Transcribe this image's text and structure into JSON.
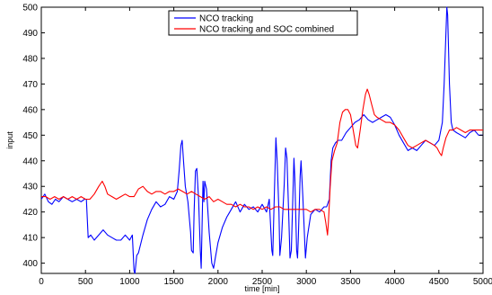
{
  "chart_data": {
    "type": "line",
    "xlabel": "time [min]",
    "ylabel": "input",
    "xlim": [
      0,
      5000
    ],
    "ylim": [
      396,
      500
    ],
    "xticks": [
      0,
      500,
      1000,
      1500,
      2000,
      2500,
      3000,
      3500,
      4000,
      4500,
      5000
    ],
    "yticks": [
      400,
      410,
      420,
      430,
      440,
      450,
      460,
      470,
      480,
      490,
      500
    ],
    "grid": false,
    "legend_position": "top-center",
    "series": [
      {
        "name": "NCO tracking",
        "color": "#0000ff",
        "points": [
          [
            0,
            425
          ],
          [
            40,
            427
          ],
          [
            80,
            424
          ],
          [
            120,
            423
          ],
          [
            160,
            425
          ],
          [
            200,
            424
          ],
          [
            250,
            426
          ],
          [
            300,
            425
          ],
          [
            350,
            424
          ],
          [
            400,
            425
          ],
          [
            450,
            424
          ],
          [
            490,
            425
          ],
          [
            510,
            425
          ],
          [
            530,
            410
          ],
          [
            560,
            411
          ],
          [
            600,
            409
          ],
          [
            650,
            411
          ],
          [
            700,
            413
          ],
          [
            750,
            411
          ],
          [
            800,
            410
          ],
          [
            850,
            409
          ],
          [
            900,
            409
          ],
          [
            950,
            411
          ],
          [
            1000,
            409
          ],
          [
            1030,
            411
          ],
          [
            1050,
            397
          ],
          [
            1060,
            396
          ],
          [
            1080,
            403
          ],
          [
            1100,
            404
          ],
          [
            1150,
            411
          ],
          [
            1200,
            417
          ],
          [
            1250,
            421
          ],
          [
            1300,
            424
          ],
          [
            1350,
            422
          ],
          [
            1400,
            423
          ],
          [
            1450,
            426
          ],
          [
            1500,
            425
          ],
          [
            1540,
            428
          ],
          [
            1560,
            436
          ],
          [
            1580,
            446
          ],
          [
            1595,
            448
          ],
          [
            1610,
            440
          ],
          [
            1630,
            430
          ],
          [
            1660,
            424
          ],
          [
            1690,
            412
          ],
          [
            1700,
            405
          ],
          [
            1720,
            404
          ],
          [
            1730,
            420
          ],
          [
            1745,
            436
          ],
          [
            1760,
            437
          ],
          [
            1780,
            425
          ],
          [
            1800,
            405
          ],
          [
            1810,
            398
          ],
          [
            1830,
            432
          ],
          [
            1840,
            424
          ],
          [
            1850,
            432
          ],
          [
            1870,
            429
          ],
          [
            1900,
            412
          ],
          [
            1930,
            400
          ],
          [
            1950,
            398
          ],
          [
            1970,
            402
          ],
          [
            2000,
            408
          ],
          [
            2050,
            414
          ],
          [
            2100,
            418
          ],
          [
            2150,
            421
          ],
          [
            2200,
            424
          ],
          [
            2250,
            420
          ],
          [
            2300,
            423
          ],
          [
            2350,
            421
          ],
          [
            2400,
            422
          ],
          [
            2450,
            420
          ],
          [
            2500,
            423
          ],
          [
            2550,
            420
          ],
          [
            2580,
            425
          ],
          [
            2610,
            405
          ],
          [
            2620,
            403
          ],
          [
            2640,
            430
          ],
          [
            2655,
            449
          ],
          [
            2670,
            440
          ],
          [
            2690,
            420
          ],
          [
            2700,
            403
          ],
          [
            2720,
            410
          ],
          [
            2750,
            431
          ],
          [
            2765,
            445
          ],
          [
            2780,
            441
          ],
          [
            2800,
            420
          ],
          [
            2815,
            402
          ],
          [
            2830,
            405
          ],
          [
            2860,
            441
          ],
          [
            2870,
            433
          ],
          [
            2890,
            405
          ],
          [
            2900,
            402
          ],
          [
            2910,
            410
          ],
          [
            2930,
            434
          ],
          [
            2940,
            440
          ],
          [
            2960,
            426
          ],
          [
            2990,
            402
          ],
          [
            3010,
            410
          ],
          [
            3050,
            419
          ],
          [
            3100,
            421
          ],
          [
            3150,
            420
          ],
          [
            3200,
            422
          ],
          [
            3230,
            422
          ],
          [
            3260,
            425
          ],
          [
            3280,
            440
          ],
          [
            3300,
            445
          ],
          [
            3330,
            447
          ],
          [
            3360,
            448
          ],
          [
            3400,
            448
          ],
          [
            3450,
            451
          ],
          [
            3500,
            453
          ],
          [
            3550,
            455
          ],
          [
            3600,
            456
          ],
          [
            3650,
            458
          ],
          [
            3700,
            456
          ],
          [
            3750,
            455
          ],
          [
            3800,
            456
          ],
          [
            3850,
            457
          ],
          [
            3900,
            458
          ],
          [
            3950,
            457
          ],
          [
            4000,
            454
          ],
          [
            4050,
            450
          ],
          [
            4100,
            447
          ],
          [
            4150,
            444
          ],
          [
            4200,
            445
          ],
          [
            4250,
            444
          ],
          [
            4300,
            446
          ],
          [
            4350,
            448
          ],
          [
            4400,
            447
          ],
          [
            4450,
            446
          ],
          [
            4500,
            448
          ],
          [
            4540,
            455
          ],
          [
            4560,
            470
          ],
          [
            4580,
            490
          ],
          [
            4590,
            500
          ],
          [
            4600,
            497
          ],
          [
            4620,
            470
          ],
          [
            4640,
            455
          ],
          [
            4660,
            452
          ],
          [
            4700,
            451
          ],
          [
            4750,
            450
          ],
          [
            4800,
            449
          ],
          [
            4850,
            451
          ],
          [
            4900,
            452
          ],
          [
            4950,
            450
          ],
          [
            5000,
            450
          ]
        ]
      },
      {
        "name": "NCO tracking and SOC combined",
        "color": "#ff0000",
        "points": [
          [
            0,
            426
          ],
          [
            50,
            426
          ],
          [
            100,
            425
          ],
          [
            150,
            426
          ],
          [
            200,
            425
          ],
          [
            250,
            426
          ],
          [
            300,
            425
          ],
          [
            350,
            426
          ],
          [
            400,
            425
          ],
          [
            450,
            426
          ],
          [
            500,
            425
          ],
          [
            550,
            425
          ],
          [
            600,
            427
          ],
          [
            650,
            430
          ],
          [
            690,
            432
          ],
          [
            720,
            430
          ],
          [
            750,
            427
          ],
          [
            800,
            426
          ],
          [
            850,
            425
          ],
          [
            900,
            426
          ],
          [
            950,
            427
          ],
          [
            1000,
            426
          ],
          [
            1050,
            426
          ],
          [
            1100,
            429
          ],
          [
            1150,
            430
          ],
          [
            1200,
            428
          ],
          [
            1250,
            427
          ],
          [
            1300,
            428
          ],
          [
            1350,
            428
          ],
          [
            1400,
            427
          ],
          [
            1450,
            428
          ],
          [
            1500,
            428
          ],
          [
            1550,
            429
          ],
          [
            1600,
            428
          ],
          [
            1650,
            427
          ],
          [
            1700,
            428
          ],
          [
            1750,
            427
          ],
          [
            1800,
            426
          ],
          [
            1850,
            425
          ],
          [
            1900,
            426
          ],
          [
            1950,
            424
          ],
          [
            2000,
            425
          ],
          [
            2050,
            424
          ],
          [
            2100,
            423
          ],
          [
            2150,
            423
          ],
          [
            2200,
            422
          ],
          [
            2250,
            423
          ],
          [
            2300,
            422
          ],
          [
            2350,
            422
          ],
          [
            2400,
            421
          ],
          [
            2450,
            422
          ],
          [
            2500,
            421
          ],
          [
            2550,
            422
          ],
          [
            2600,
            421
          ],
          [
            2650,
            422
          ],
          [
            2700,
            422
          ],
          [
            2750,
            421
          ],
          [
            2800,
            421
          ],
          [
            2850,
            421
          ],
          [
            2900,
            421
          ],
          [
            2950,
            421
          ],
          [
            3000,
            421
          ],
          [
            3050,
            420
          ],
          [
            3100,
            421
          ],
          [
            3150,
            421
          ],
          [
            3200,
            420
          ],
          [
            3220,
            416
          ],
          [
            3240,
            411
          ],
          [
            3250,
            416
          ],
          [
            3270,
            430
          ],
          [
            3290,
            440
          ],
          [
            3320,
            444
          ],
          [
            3350,
            447
          ],
          [
            3380,
            455
          ],
          [
            3410,
            459
          ],
          [
            3440,
            460
          ],
          [
            3470,
            460
          ],
          [
            3500,
            458
          ],
          [
            3530,
            452
          ],
          [
            3560,
            446
          ],
          [
            3580,
            445
          ],
          [
            3610,
            452
          ],
          [
            3640,
            460
          ],
          [
            3670,
            466
          ],
          [
            3690,
            468
          ],
          [
            3710,
            466
          ],
          [
            3740,
            462
          ],
          [
            3770,
            458
          ],
          [
            3800,
            457
          ],
          [
            3850,
            456
          ],
          [
            3900,
            455
          ],
          [
            3950,
            455
          ],
          [
            4000,
            454
          ],
          [
            4050,
            452
          ],
          [
            4100,
            449
          ],
          [
            4150,
            446
          ],
          [
            4200,
            445
          ],
          [
            4250,
            446
          ],
          [
            4300,
            447
          ],
          [
            4350,
            448
          ],
          [
            4400,
            447
          ],
          [
            4450,
            446
          ],
          [
            4480,
            445
          ],
          [
            4510,
            443
          ],
          [
            4530,
            442
          ],
          [
            4550,
            445
          ],
          [
            4580,
            449
          ],
          [
            4620,
            452
          ],
          [
            4660,
            452
          ],
          [
            4700,
            453
          ],
          [
            4750,
            452
          ],
          [
            4800,
            451
          ],
          [
            4850,
            452
          ],
          [
            4900,
            452
          ],
          [
            4950,
            452
          ],
          [
            5000,
            452
          ]
        ]
      }
    ]
  }
}
